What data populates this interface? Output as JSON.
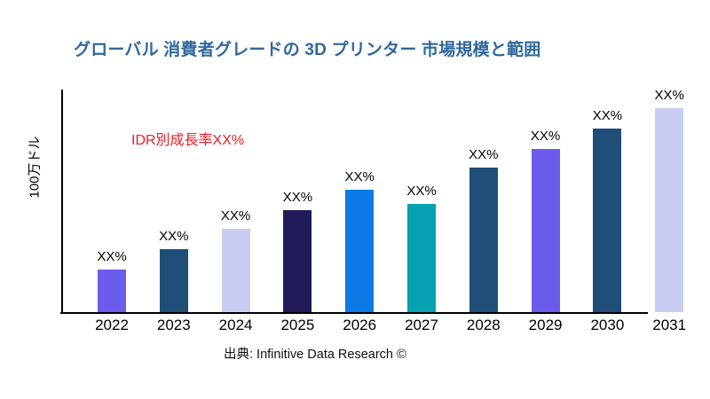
{
  "header": {
    "title": "グローバル 消費者グレードの 3D プリンター 市場規模と範囲",
    "title_color": "#31689B"
  },
  "annotation": {
    "text": "IDR別成長率XX%",
    "color": "#EE1C25"
  },
  "footer": {
    "source": "出典: Infinitive Data Research ©"
  },
  "chart_data": {
    "type": "bar",
    "title": "グローバル 消費者グレードの 3D プリンター 市場規模と範囲",
    "xlabel": "",
    "ylabel": "100万ドル",
    "categories": [
      "2022",
      "2023",
      "2024",
      "2025",
      "2026",
      "2027",
      "2028",
      "2029",
      "2030",
      "2031"
    ],
    "values": [
      2.1,
      3.1,
      4.1,
      5.0,
      6.0,
      5.3,
      7.1,
      8.0,
      9.0,
      10.0
    ],
    "value_labels": [
      "XX%",
      "XX%",
      "XX%",
      "XX%",
      "XX%",
      "XX%",
      "XX%",
      "XX%",
      "XX%",
      "XX%"
    ],
    "bar_colors": [
      "#6B5CEC",
      "#1F4E79",
      "#C9CCF0",
      "#221B5A",
      "#0E7AE6",
      "#06A1B2",
      "#1F4E79",
      "#6B5CEC",
      "#1F4E79",
      "#C9CCF0"
    ],
    "annotation": "IDR別成長率XX%",
    "ylim": [
      0,
      10.9
    ],
    "grid": false,
    "legend": "none",
    "units_note": "values are relative bar heights; actual figures masked as XX% in the source image"
  }
}
